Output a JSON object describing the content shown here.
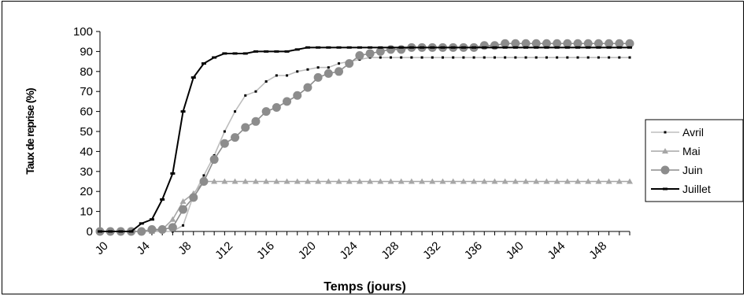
{
  "chart_data": {
    "type": "line",
    "title": "",
    "xlabel": "Temps (jours)",
    "ylabel": "Taux de reprise (%)",
    "ylim": [
      0,
      100
    ],
    "yticks": [
      0,
      10,
      20,
      30,
      40,
      50,
      60,
      70,
      80,
      90,
      100
    ],
    "xtick_labels": [
      "J0",
      "J4",
      "J8",
      "J12",
      "J16",
      "J20",
      "J24",
      "J28",
      "J32",
      "J36",
      "J40",
      "J44",
      "J48"
    ],
    "x": [
      0,
      1,
      2,
      3,
      4,
      5,
      6,
      7,
      8,
      9,
      10,
      11,
      12,
      13,
      14,
      15,
      16,
      17,
      18,
      19,
      20,
      21,
      22,
      23,
      24,
      25,
      26,
      27,
      28,
      29,
      30,
      31,
      32,
      33,
      34,
      35,
      36,
      37,
      38,
      39,
      40,
      41,
      42,
      43,
      44,
      45,
      46,
      47,
      48,
      49,
      50,
      51
    ],
    "grid": false,
    "legend_position": "right",
    "series": [
      {
        "name": "Avril",
        "color": "#bdbdbd",
        "marker": "dash",
        "marker_color": "#000000",
        "values": [
          0,
          0,
          0,
          0,
          0,
          0,
          0,
          0,
          3,
          18,
          28,
          38,
          50,
          60,
          68,
          70,
          75,
          78,
          78,
          80,
          81,
          82,
          82,
          84,
          85,
          86,
          87,
          87,
          87,
          87,
          87,
          87,
          87,
          87,
          87,
          87,
          87,
          87,
          87,
          87,
          87,
          87,
          87,
          87,
          87,
          87,
          87,
          87,
          87,
          87,
          87,
          87
        ]
      },
      {
        "name": "Mai",
        "color": "#a6a6a6",
        "marker": "triangle",
        "marker_color": "#a6a6a6",
        "values": [
          0,
          0,
          0,
          0,
          0,
          0,
          1,
          6,
          15,
          19,
          25,
          25,
          25,
          25,
          25,
          25,
          25,
          25,
          25,
          25,
          25,
          25,
          25,
          25,
          25,
          25,
          25,
          25,
          25,
          25,
          25,
          25,
          25,
          25,
          25,
          25,
          25,
          25,
          25,
          25,
          25,
          25,
          25,
          25,
          25,
          25,
          25,
          25,
          25,
          25,
          25,
          25
        ]
      },
      {
        "name": "Juin",
        "color": "#8c8c8c",
        "marker": "circle",
        "marker_color": "#8c8c8c",
        "values": [
          0,
          0,
          0,
          0,
          0,
          1,
          1,
          2,
          11,
          17,
          25,
          36,
          44,
          47,
          52,
          55,
          60,
          62,
          65,
          68,
          72,
          77,
          79,
          80,
          84,
          88,
          89,
          90,
          91,
          91,
          92,
          92,
          92,
          92,
          92,
          92,
          92,
          93,
          93,
          94,
          94,
          94,
          94,
          94,
          94,
          94,
          94,
          94,
          94,
          94,
          94,
          94
        ]
      },
      {
        "name": "Juillet",
        "color": "#000000",
        "marker": "square",
        "marker_color": "#000000",
        "values": [
          0,
          0,
          0,
          0,
          4,
          6,
          16,
          29,
          60,
          77,
          84,
          87,
          89,
          89,
          89,
          90,
          90,
          90,
          90,
          91,
          92,
          92,
          92,
          92,
          92,
          92,
          92,
          92,
          92,
          92,
          92,
          92,
          92,
          92,
          92,
          92,
          92,
          92,
          92,
          92,
          92,
          92,
          92,
          92,
          92,
          92,
          92,
          92,
          92,
          92,
          92,
          92
        ]
      }
    ]
  }
}
